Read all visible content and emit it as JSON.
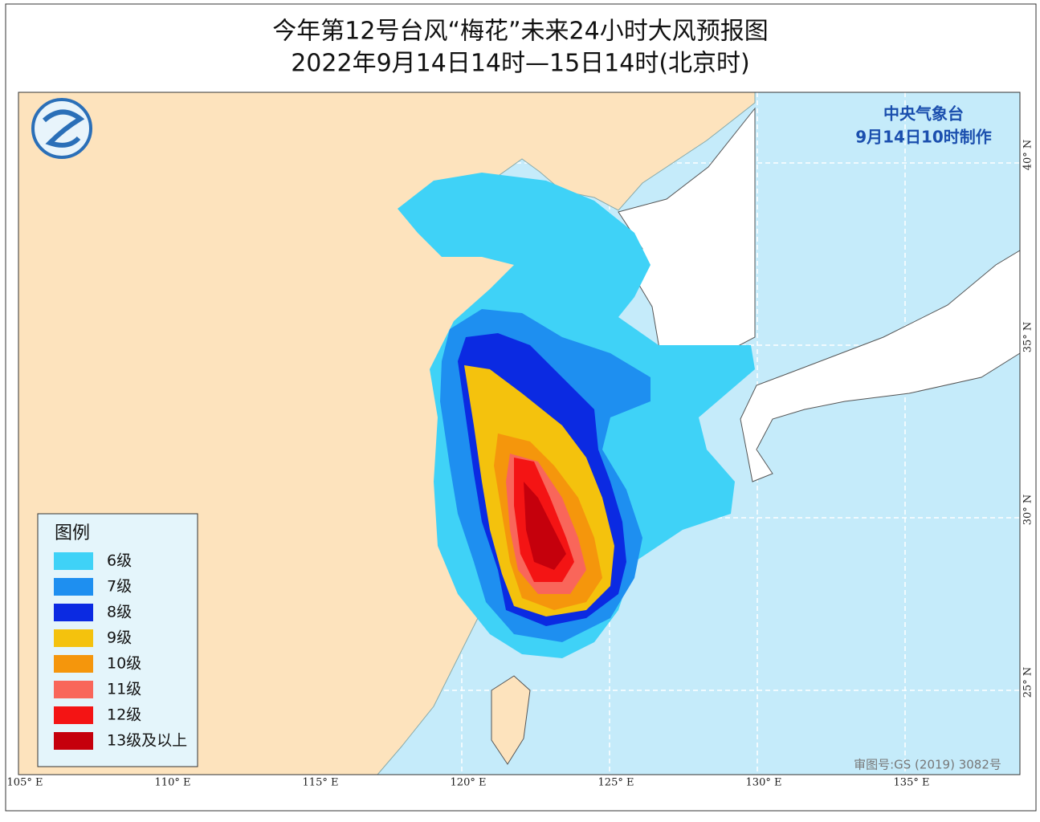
{
  "header": {
    "title": "今年第12号台风“梅花”未来24小时大风预报图",
    "subtitle": "2022年9月14日14时—15日14时(北京时)"
  },
  "issuer": {
    "agency": "中央气象台",
    "issued": "9月14日10时制作"
  },
  "legend": {
    "title": "图例",
    "items": [
      {
        "label": "6级",
        "color": "#3fd2f7"
      },
      {
        "label": "7级",
        "color": "#1e8ff0"
      },
      {
        "label": "8级",
        "color": "#0b2ae2"
      },
      {
        "label": "9级",
        "color": "#f4c20d"
      },
      {
        "label": "10级",
        "color": "#f5960c"
      },
      {
        "label": "11级",
        "color": "#f9665a"
      },
      {
        "label": "12级",
        "color": "#f41414"
      },
      {
        "label": "13级及以上",
        "color": "#c5000c"
      }
    ]
  },
  "map": {
    "lon_labels": [
      "105° E",
      "110° E",
      "115° E",
      "120° E",
      "125° E",
      "130° E",
      "135° E"
    ],
    "lat_labels": [
      "40° N",
      "35° N",
      "30° N",
      "25° N"
    ],
    "approval": "审图号:GS (2019) 3082号"
  }
}
